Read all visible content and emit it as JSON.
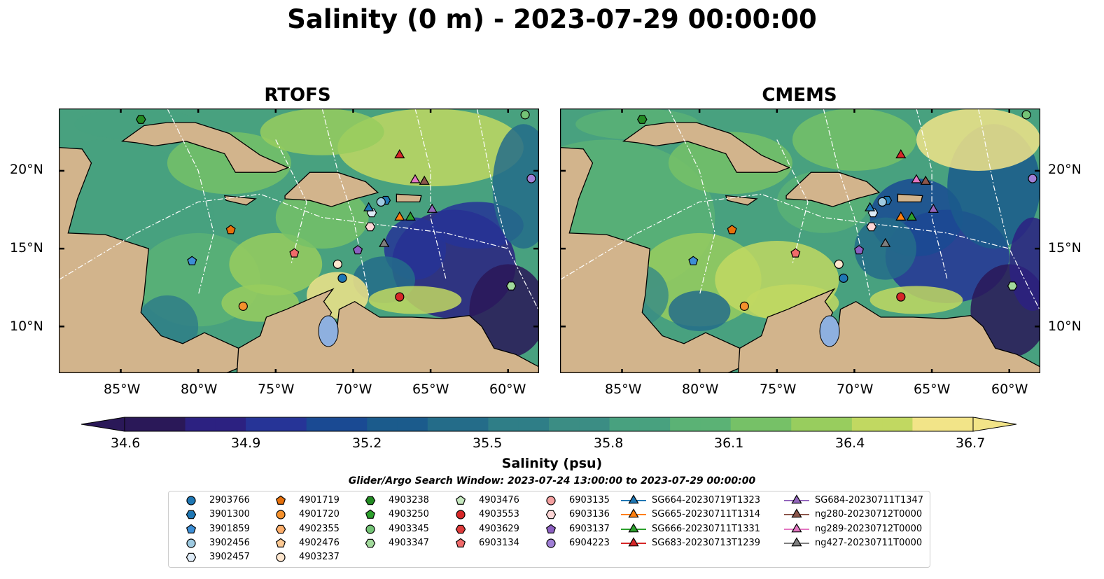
{
  "title": "Salinity (0 m) - 2023-07-29 00:00:00",
  "panels": [
    {
      "title": "RTOFS"
    },
    {
      "title": "CMEMS"
    }
  ],
  "lon_ticks": [
    "85°W",
    "80°W",
    "75°W",
    "70°W",
    "65°W",
    "60°W"
  ],
  "lat_ticks": [
    "20°N",
    "15°N",
    "10°N"
  ],
  "colorbar": {
    "label": "Salinity (psu)",
    "ticks": [
      "34.6",
      "34.9",
      "35.2",
      "35.5",
      "35.8",
      "36.1",
      "36.4",
      "36.7"
    ],
    "extend": "both",
    "colormap": [
      "#2a1858",
      "#2c2181",
      "#263497",
      "#1a4a93",
      "#1b5b8c",
      "#246c89",
      "#2f7e87",
      "#3b8d84",
      "#48a17f",
      "#5bb275",
      "#76c167",
      "#98cd5e",
      "#c1d861",
      "#f2e488"
    ]
  },
  "search_window": "Glider/Argo Search Window: 2023-07-24 13:00:00 to 2023-07-29 00:00:00",
  "land_color": "#d2b48c",
  "legend": {
    "columns": [
      [
        {
          "label": "2903766",
          "marker": "circle",
          "color": "#1f77b4"
        },
        {
          "label": "3901300",
          "marker": "hexagon",
          "color": "#1f77b4"
        },
        {
          "label": "3901859",
          "marker": "pentagon",
          "color": "#3c8ed6"
        },
        {
          "label": "3902456",
          "marker": "circle",
          "color": "#9ecae1"
        },
        {
          "label": "3902457",
          "marker": "hexagon",
          "color": "#deebf7"
        }
      ],
      [
        {
          "label": "4901719",
          "marker": "pentagon",
          "color": "#e6700b"
        },
        {
          "label": "4901720",
          "marker": "circle",
          "color": "#f5912c"
        },
        {
          "label": "4902355",
          "marker": "hexagon",
          "color": "#fdae6b"
        },
        {
          "label": "4902476",
          "marker": "pentagon",
          "color": "#fdc993"
        },
        {
          "label": "4903237",
          "marker": "circle",
          "color": "#fee6ce"
        }
      ],
      [
        {
          "label": "4903238",
          "marker": "hexagon",
          "color": "#238b23"
        },
        {
          "label": "4903250",
          "marker": "pentagon",
          "color": "#2ca02c"
        },
        {
          "label": "4903345",
          "marker": "circle",
          "color": "#74c476"
        },
        {
          "label": "4903347",
          "marker": "hexagon",
          "color": "#a1d99b"
        }
      ],
      [
        {
          "label": "4903476",
          "marker": "pentagon",
          "color": "#c7e9c0"
        },
        {
          "label": "4903553",
          "marker": "circle",
          "color": "#d62728"
        },
        {
          "label": "4903629",
          "marker": "hexagon",
          "color": "#de3b3b"
        },
        {
          "label": "6903134",
          "marker": "pentagon",
          "color": "#f06a6a"
        }
      ],
      [
        {
          "label": "6903135",
          "marker": "circle",
          "color": "#f4a0a0"
        },
        {
          "label": "6903136",
          "marker": "hexagon",
          "color": "#fcd5d5"
        },
        {
          "label": "6903137",
          "marker": "pentagon",
          "color": "#8c5fc1"
        },
        {
          "label": "6904223",
          "marker": "circle",
          "color": "#a07fd6"
        }
      ],
      [
        {
          "label": "SG664-20230719T1323",
          "marker": "triangle",
          "color": "#1f77b4"
        },
        {
          "label": "SG665-20230711T1314",
          "marker": "triangle",
          "color": "#ff7f0e"
        },
        {
          "label": "SG666-20230711T1331",
          "marker": "triangle",
          "color": "#2ca02c"
        },
        {
          "label": "SG683-20230713T1239",
          "marker": "triangle",
          "color": "#d62728"
        }
      ],
      [
        {
          "label": "SG684-20230711T1347",
          "marker": "triangle",
          "color": "#9467bd"
        },
        {
          "label": "ng280-20230712T0000",
          "marker": "triangle",
          "color": "#8c564b"
        },
        {
          "label": "ng289-20230712T0000",
          "marker": "triangle",
          "color": "#e377c2"
        },
        {
          "label": "ng427-20230711T0000",
          "marker": "triangle",
          "color": "#7f7f7f"
        }
      ]
    ]
  },
  "map_extent": {
    "lon": [
      -89,
      -58
    ],
    "lat": [
      7,
      24
    ]
  },
  "observations": [
    {
      "id": "2903766",
      "lon": -70.7,
      "lat": 13.1
    },
    {
      "id": "3901300",
      "lon": -67.9,
      "lat": 18.1
    },
    {
      "id": "3902456",
      "lon": -68.2,
      "lat": 18.0
    },
    {
      "id": "3901859",
      "lon": -80.4,
      "lat": 14.2
    },
    {
      "id": "3902457",
      "lon": -68.8,
      "lat": 17.3
    },
    {
      "id": "4901719",
      "lon": -77.9,
      "lat": 16.2
    },
    {
      "id": "4901720",
      "lon": -77.1,
      "lat": 11.3
    },
    {
      "id": "4903237",
      "lon": -71.0,
      "lat": 14.0
    },
    {
      "id": "4903238",
      "lon": -83.7,
      "lat": 23.3
    },
    {
      "id": "4903345",
      "lon": -58.9,
      "lat": 23.6
    },
    {
      "id": "4903347",
      "lon": -59.8,
      "lat": 12.6
    },
    {
      "id": "4903553",
      "lon": -67.0,
      "lat": 11.9
    },
    {
      "id": "6903134",
      "lon": -73.8,
      "lat": 14.7
    },
    {
      "id": "6903136",
      "lon": -68.9,
      "lat": 16.4
    },
    {
      "id": "6903137",
      "lon": -69.7,
      "lat": 14.9
    },
    {
      "id": "6904223",
      "lon": -58.5,
      "lat": 19.5
    },
    {
      "id": "SG664-20230719T1323",
      "lon": -69.0,
      "lat": 17.6
    },
    {
      "id": "SG665-20230711T1314",
      "lon": -67.0,
      "lat": 17.0
    },
    {
      "id": "SG666-20230711T1331",
      "lon": -66.3,
      "lat": 17.0
    },
    {
      "id": "SG683-20230713T1239",
      "lon": -67.0,
      "lat": 21.0
    },
    {
      "id": "SG684-20230711T1347",
      "lon": -64.9,
      "lat": 17.5
    },
    {
      "id": "ng280-20230712T0000",
      "lon": -65.4,
      "lat": 19.3
    },
    {
      "id": "ng289-20230712T0000",
      "lon": -66.0,
      "lat": 19.4
    },
    {
      "id": "ng427-20230711T0000",
      "lon": -68.0,
      "lat": 15.3
    }
  ]
}
